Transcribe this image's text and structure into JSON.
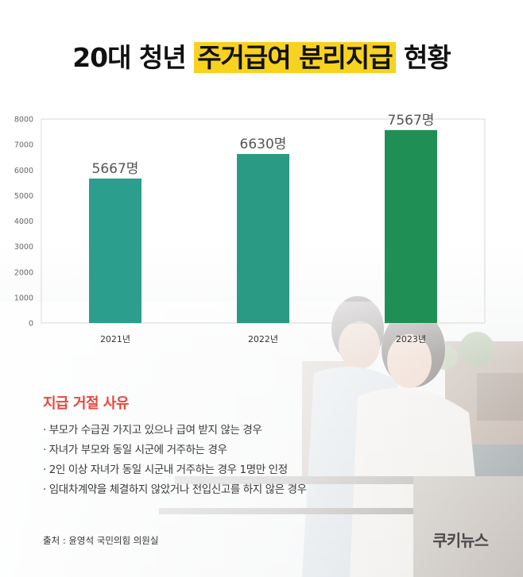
{
  "title": {
    "prefix": "20대 청년 ",
    "highlight": "주거급여 분리지급",
    "suffix": " 현황"
  },
  "chart_data": {
    "type": "bar",
    "categories": [
      "2021년",
      "2022년",
      "2023년"
    ],
    "values": [
      5667,
      6630,
      7567
    ],
    "data_labels": [
      "5667명",
      "6630명",
      "7567명"
    ],
    "bar_colors": [
      "#2c9e8d",
      "#2a9a84",
      "#1f8f55"
    ],
    "ylim": [
      0,
      8000
    ],
    "yticks": [
      0,
      1000,
      2000,
      3000,
      4000,
      5000,
      6000,
      7000,
      8000
    ],
    "grid": false
  },
  "reasons": {
    "title": "지급 거절 사유",
    "items": [
      "· 부모가 수급권 가지고 있으나 급여 받지 않는 경우",
      "· 자녀가 부모와 동일 시군에 거주하는 경우",
      "· 2인 이상 자녀가 동일 시군내 거주하는 경우 1명만 인정",
      "· 임대차계약을 체결하지 않았거나 전입신고를 하지 않은 경우"
    ]
  },
  "source": "출처 : 윤영석 국민의힘 의원실",
  "logo": "쿠키뉴스"
}
